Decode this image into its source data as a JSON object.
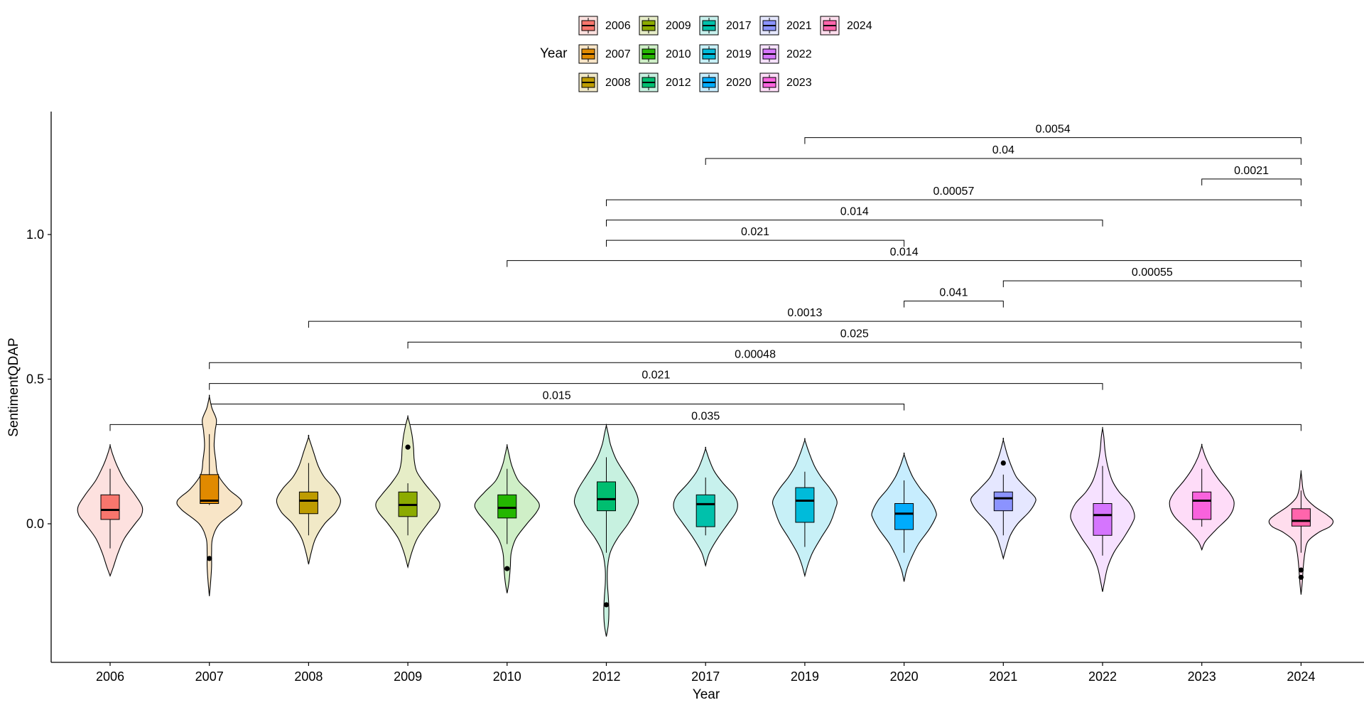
{
  "chart_data": {
    "type": "violin",
    "xlabel": "Year",
    "ylabel": "SentimentQDAP",
    "ylim": [
      -0.47,
      1.4
    ],
    "yticks": [
      0.0,
      0.5,
      1.0
    ],
    "ytick_labels": [
      "0.0",
      "0.5",
      "1.0"
    ],
    "legend": {
      "title": "Year",
      "position": "top",
      "columns": [
        [
          "2006",
          "2007",
          "2008"
        ],
        [
          "2009",
          "2010",
          "2012"
        ],
        [
          "2017",
          "2019",
          "2020"
        ],
        [
          "2021",
          "2022",
          "2023"
        ],
        [
          "2024"
        ]
      ]
    },
    "categories": [
      "2006",
      "2007",
      "2008",
      "2009",
      "2010",
      "2012",
      "2017",
      "2019",
      "2020",
      "2021",
      "2022",
      "2023",
      "2024"
    ],
    "colors": [
      "#F8766D",
      "#E18A00",
      "#BE9C00",
      "#8CAB00",
      "#24B700",
      "#00BE70",
      "#00C1AB",
      "#00BBDA",
      "#00ACFC",
      "#8B93FF",
      "#D575FE",
      "#F962DD",
      "#FF65AC"
    ],
    "series": [
      {
        "year": "2006",
        "min": -0.18,
        "max": 0.27,
        "box": {
          "lower_whisker": -0.085,
          "q1": 0.015,
          "median": 0.048,
          "q3": 0.1,
          "upper_whisker": 0.19
        },
        "outliers": [],
        "density": [
          [
            -0.18,
            0
          ],
          [
            -0.15,
            0.1
          ],
          [
            -0.1,
            0.25
          ],
          [
            -0.05,
            0.45
          ],
          [
            0.0,
            0.78
          ],
          [
            0.03,
            0.98
          ],
          [
            0.06,
            1.0
          ],
          [
            0.1,
            0.78
          ],
          [
            0.15,
            0.45
          ],
          [
            0.2,
            0.22
          ],
          [
            0.24,
            0.08
          ],
          [
            0.27,
            0
          ]
        ]
      },
      {
        "year": "2007",
        "min": -0.25,
        "max": 0.44,
        "box": {
          "lower_whisker": 0.065,
          "q1": 0.07,
          "median": 0.08,
          "q3": 0.17,
          "upper_whisker": 0.31
        },
        "outliers": [
          -0.12
        ],
        "density": [
          [
            -0.25,
            0
          ],
          [
            -0.2,
            0.04
          ],
          [
            -0.15,
            0.07
          ],
          [
            -0.1,
            0.07
          ],
          [
            -0.05,
            0.1
          ],
          [
            0.0,
            0.32
          ],
          [
            0.05,
            0.88
          ],
          [
            0.08,
            1.0
          ],
          [
            0.12,
            0.6
          ],
          [
            0.17,
            0.27
          ],
          [
            0.22,
            0.2
          ],
          [
            0.27,
            0.15
          ],
          [
            0.32,
            0.18
          ],
          [
            0.36,
            0.22
          ],
          [
            0.4,
            0.08
          ],
          [
            0.44,
            0
          ]
        ]
      },
      {
        "year": "2008",
        "min": -0.14,
        "max": 0.3,
        "box": {
          "lower_whisker": -0.04,
          "q1": 0.035,
          "median": 0.08,
          "q3": 0.11,
          "upper_whisker": 0.21
        },
        "outliers": [],
        "density": [
          [
            -0.14,
            0
          ],
          [
            -0.1,
            0.08
          ],
          [
            -0.05,
            0.22
          ],
          [
            0.0,
            0.5
          ],
          [
            0.04,
            0.85
          ],
          [
            0.08,
            1.0
          ],
          [
            0.12,
            0.82
          ],
          [
            0.16,
            0.5
          ],
          [
            0.2,
            0.3
          ],
          [
            0.25,
            0.15
          ],
          [
            0.3,
            0
          ]
        ]
      },
      {
        "year": "2009",
        "min": -0.15,
        "max": 0.37,
        "box": {
          "lower_whisker": -0.04,
          "q1": 0.025,
          "median": 0.065,
          "q3": 0.11,
          "upper_whisker": 0.14
        },
        "outliers": [
          0.265
        ],
        "density": [
          [
            -0.15,
            0
          ],
          [
            -0.1,
            0.12
          ],
          [
            -0.05,
            0.3
          ],
          [
            0.0,
            0.62
          ],
          [
            0.04,
            0.92
          ],
          [
            0.07,
            1.0
          ],
          [
            0.1,
            0.82
          ],
          [
            0.14,
            0.52
          ],
          [
            0.18,
            0.28
          ],
          [
            0.22,
            0.2
          ],
          [
            0.26,
            0.18
          ],
          [
            0.3,
            0.14
          ],
          [
            0.34,
            0.07
          ],
          [
            0.37,
            0
          ]
        ]
      },
      {
        "year": "2010",
        "min": -0.24,
        "max": 0.27,
        "box": {
          "lower_whisker": -0.07,
          "q1": 0.02,
          "median": 0.055,
          "q3": 0.1,
          "upper_whisker": 0.19
        },
        "outliers": [
          -0.155
        ],
        "density": [
          [
            -0.24,
            0
          ],
          [
            -0.2,
            0.06
          ],
          [
            -0.15,
            0.1
          ],
          [
            -0.1,
            0.13
          ],
          [
            -0.05,
            0.28
          ],
          [
            0.0,
            0.62
          ],
          [
            0.04,
            0.92
          ],
          [
            0.07,
            1.0
          ],
          [
            0.11,
            0.7
          ],
          [
            0.15,
            0.35
          ],
          [
            0.2,
            0.15
          ],
          [
            0.24,
            0.06
          ],
          [
            0.27,
            0
          ]
        ]
      },
      {
        "year": "2012",
        "min": -0.39,
        "max": 0.34,
        "box": {
          "lower_whisker": -0.1,
          "q1": 0.045,
          "median": 0.085,
          "q3": 0.145,
          "upper_whisker": 0.23
        },
        "outliers": [
          -0.28
        ],
        "density": [
          [
            -0.39,
            0
          ],
          [
            -0.35,
            0.06
          ],
          [
            -0.3,
            0.08
          ],
          [
            -0.25,
            0.06
          ],
          [
            -0.2,
            0.03
          ],
          [
            -0.15,
            0.04
          ],
          [
            -0.1,
            0.12
          ],
          [
            -0.05,
            0.35
          ],
          [
            0.0,
            0.68
          ],
          [
            0.05,
            0.92
          ],
          [
            0.08,
            1.0
          ],
          [
            0.12,
            0.88
          ],
          [
            0.17,
            0.6
          ],
          [
            0.22,
            0.32
          ],
          [
            0.27,
            0.14
          ],
          [
            0.31,
            0.06
          ],
          [
            0.34,
            0
          ]
        ]
      },
      {
        "year": "2017",
        "min": -0.145,
        "max": 0.26,
        "box": {
          "lower_whisker": -0.04,
          "q1": -0.01,
          "median": 0.068,
          "q3": 0.1,
          "upper_whisker": 0.16
        },
        "outliers": [],
        "density": [
          [
            -0.145,
            0
          ],
          [
            -0.1,
            0.12
          ],
          [
            -0.05,
            0.38
          ],
          [
            0.0,
            0.7
          ],
          [
            0.04,
            0.95
          ],
          [
            0.07,
            1.0
          ],
          [
            0.1,
            0.88
          ],
          [
            0.14,
            0.55
          ],
          [
            0.18,
            0.28
          ],
          [
            0.22,
            0.12
          ],
          [
            0.26,
            0
          ]
        ]
      },
      {
        "year": "2019",
        "min": -0.18,
        "max": 0.29,
        "box": {
          "lower_whisker": -0.08,
          "q1": 0.005,
          "median": 0.08,
          "q3": 0.125,
          "upper_whisker": 0.18
        },
        "outliers": [],
        "density": [
          [
            -0.18,
            0
          ],
          [
            -0.14,
            0.1
          ],
          [
            -0.1,
            0.24
          ],
          [
            -0.05,
            0.5
          ],
          [
            0.0,
            0.78
          ],
          [
            0.05,
            0.95
          ],
          [
            0.08,
            1.0
          ],
          [
            0.12,
            0.8
          ],
          [
            0.16,
            0.52
          ],
          [
            0.2,
            0.3
          ],
          [
            0.25,
            0.12
          ],
          [
            0.29,
            0
          ]
        ]
      },
      {
        "year": "2020",
        "min": -0.2,
        "max": 0.24,
        "box": {
          "lower_whisker": -0.1,
          "q1": -0.02,
          "median": 0.035,
          "q3": 0.07,
          "upper_whisker": 0.15
        },
        "outliers": [],
        "density": [
          [
            -0.2,
            0
          ],
          [
            -0.16,
            0.08
          ],
          [
            -0.12,
            0.22
          ],
          [
            -0.07,
            0.45
          ],
          [
            -0.02,
            0.78
          ],
          [
            0.02,
            0.98
          ],
          [
            0.04,
            1.0
          ],
          [
            0.08,
            0.82
          ],
          [
            0.12,
            0.52
          ],
          [
            0.16,
            0.28
          ],
          [
            0.2,
            0.12
          ],
          [
            0.24,
            0
          ]
        ]
      },
      {
        "year": "2021",
        "min": -0.12,
        "max": 0.29,
        "box": {
          "lower_whisker": -0.04,
          "q1": 0.045,
          "median": 0.088,
          "q3": 0.11,
          "upper_whisker": 0.17
        },
        "outliers": [
          0.21
        ],
        "density": [
          [
            -0.12,
            0
          ],
          [
            -0.08,
            0.1
          ],
          [
            -0.04,
            0.22
          ],
          [
            0.0,
            0.45
          ],
          [
            0.04,
            0.8
          ],
          [
            0.07,
            0.98
          ],
          [
            0.09,
            1.0
          ],
          [
            0.12,
            0.75
          ],
          [
            0.16,
            0.42
          ],
          [
            0.2,
            0.25
          ],
          [
            0.24,
            0.12
          ],
          [
            0.29,
            0
          ]
        ]
      },
      {
        "year": "2022",
        "min": -0.235,
        "max": 0.33,
        "box": {
          "lower_whisker": -0.11,
          "q1": -0.04,
          "median": 0.03,
          "q3": 0.07,
          "upper_whisker": 0.2
        },
        "outliers": [],
        "density": [
          [
            -0.235,
            0
          ],
          [
            -0.2,
            0.06
          ],
          [
            -0.15,
            0.16
          ],
          [
            -0.1,
            0.35
          ],
          [
            -0.05,
            0.65
          ],
          [
            0.0,
            0.92
          ],
          [
            0.03,
            1.0
          ],
          [
            0.07,
            0.85
          ],
          [
            0.11,
            0.52
          ],
          [
            0.15,
            0.3
          ],
          [
            0.2,
            0.16
          ],
          [
            0.25,
            0.08
          ],
          [
            0.3,
            0.04
          ],
          [
            0.33,
            0
          ]
        ]
      },
      {
        "year": "2023",
        "min": -0.09,
        "max": 0.27,
        "box": {
          "lower_whisker": -0.01,
          "q1": 0.015,
          "median": 0.08,
          "q3": 0.11,
          "upper_whisker": 0.19
        },
        "outliers": [],
        "density": [
          [
            -0.09,
            0
          ],
          [
            -0.06,
            0.12
          ],
          [
            -0.02,
            0.45
          ],
          [
            0.02,
            0.82
          ],
          [
            0.05,
            0.98
          ],
          [
            0.08,
            1.0
          ],
          [
            0.11,
            0.85
          ],
          [
            0.15,
            0.55
          ],
          [
            0.19,
            0.3
          ],
          [
            0.23,
            0.12
          ],
          [
            0.27,
            0
          ]
        ]
      },
      {
        "year": "2024",
        "min": -0.245,
        "max": 0.18,
        "box": {
          "lower_whisker": -0.1,
          "q1": -0.008,
          "median": 0.01,
          "q3": 0.052,
          "upper_whisker": 0.115
        },
        "outliers": [
          -0.16,
          -0.185
        ],
        "density": [
          [
            -0.245,
            0
          ],
          [
            -0.2,
            0.04
          ],
          [
            -0.15,
            0.07
          ],
          [
            -0.1,
            0.12
          ],
          [
            -0.06,
            0.22
          ],
          [
            -0.03,
            0.55
          ],
          [
            -0.01,
            0.9
          ],
          [
            0.01,
            1.0
          ],
          [
            0.03,
            0.82
          ],
          [
            0.06,
            0.42
          ],
          [
            0.09,
            0.15
          ],
          [
            0.12,
            0.06
          ],
          [
            0.15,
            0.03
          ],
          [
            0.18,
            0
          ]
        ]
      }
    ],
    "comparisons": [
      {
        "from": "2019",
        "to": "2024",
        "label": "0.0054",
        "y": 1.335
      },
      {
        "from": "2017",
        "to": "2024",
        "label": "0.04",
        "y": 1.263
      },
      {
        "from": "2023",
        "to": "2024",
        "label": "0.0021",
        "y": 1.192
      },
      {
        "from": "2012",
        "to": "2024",
        "label": "0.00057",
        "y": 1.12
      },
      {
        "from": "2012",
        "to": "2022",
        "label": "0.014",
        "y": 1.05
      },
      {
        "from": "2012",
        "to": "2020",
        "label": "0.021",
        "y": 0.98
      },
      {
        "from": "2010",
        "to": "2024",
        "label": "0.014",
        "y": 0.91
      },
      {
        "from": "2021",
        "to": "2024",
        "label": "0.00055",
        "y": 0.84
      },
      {
        "from": "2020",
        "to": "2021",
        "label": "0.041",
        "y": 0.77
      },
      {
        "from": "2008",
        "to": "2024",
        "label": "0.0013",
        "y": 0.7
      },
      {
        "from": "2009",
        "to": "2024",
        "label": "0.025",
        "y": 0.628
      },
      {
        "from": "2007",
        "to": "2024",
        "label": "0.00048",
        "y": 0.557
      },
      {
        "from": "2007",
        "to": "2022",
        "label": "0.021",
        "y": 0.485
      },
      {
        "from": "2007",
        "to": "2020",
        "label": "0.015",
        "y": 0.414
      },
      {
        "from": "2006",
        "to": "2024",
        "label": "0.035",
        "y": 0.343
      }
    ]
  }
}
